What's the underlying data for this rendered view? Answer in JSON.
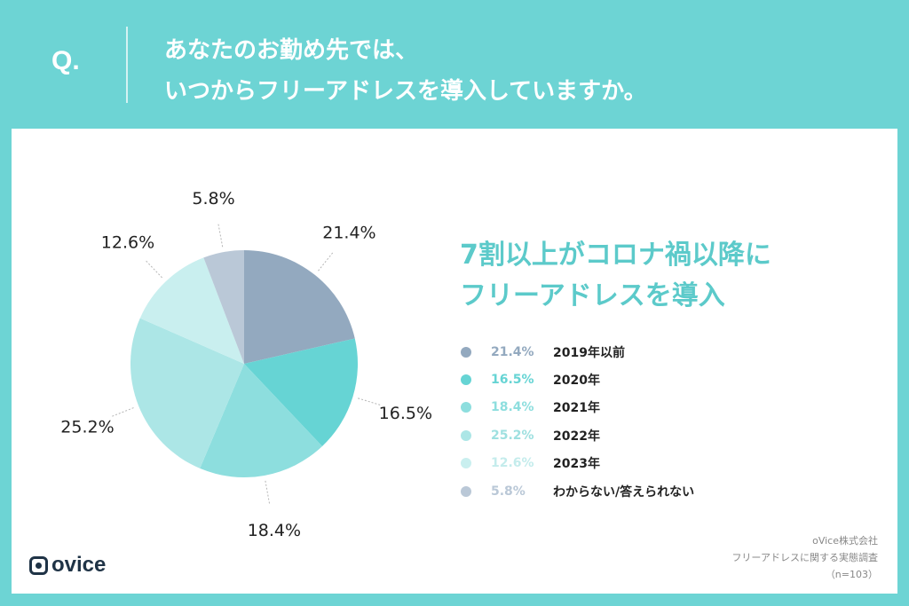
{
  "header": {
    "q_label": "Q.",
    "question_line1": "あなたのお勤め先では、",
    "question_line2": "いつからフリーアドレスを導入していますか。"
  },
  "headline": {
    "line1": "7割以上がコロナ禍以降に",
    "line2": "フリーアドレスを導入"
  },
  "source": {
    "line1": "oVice株式会社",
    "line2": "フリーアドレスに関する実態調査",
    "line3": "（n=103）"
  },
  "logo": {
    "text": "ovice"
  },
  "chart_data": {
    "type": "pie",
    "title": "",
    "slices": [
      {
        "label": "2019年以前",
        "value": 21.4,
        "display": "21.4%",
        "color": "#93a9bf",
        "text_color": "#93a9bf"
      },
      {
        "label": "2020年",
        "value": 16.5,
        "display": "16.5%",
        "color": "#66d4d4",
        "text_color": "#66d4d4"
      },
      {
        "label": "2021年",
        "value": 18.4,
        "display": "18.4%",
        "color": "#8ddede",
        "text_color": "#8ddede"
      },
      {
        "label": "2022年",
        "value": 25.2,
        "display": "25.2%",
        "color": "#ace6e6",
        "text_color": "#9ee0e0"
      },
      {
        "label": "2023年",
        "value": 12.6,
        "display": "12.6%",
        "color": "#c9efef",
        "text_color": "#c4ecec"
      },
      {
        "label": "わからない/答えられない",
        "value": 5.8,
        "display": "5.8%",
        "color": "#bac8d7",
        "text_color": "#bac8d7"
      }
    ]
  }
}
